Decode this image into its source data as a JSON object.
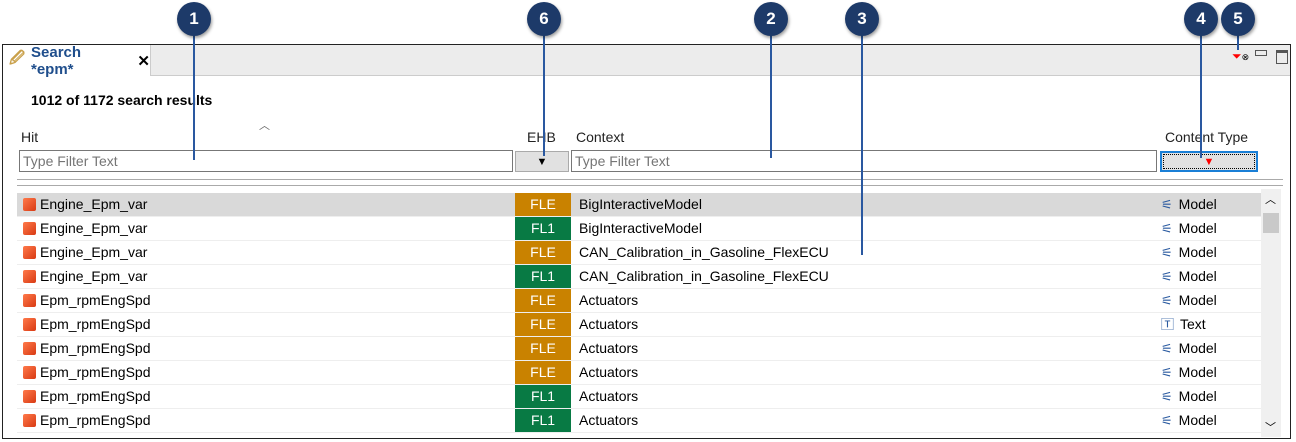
{
  "tab": {
    "title": "Search *epm*",
    "close": "✕"
  },
  "summary": "1012 of 1172 search results",
  "columns": {
    "hit": "Hit",
    "ehb": "EHB",
    "context": "Context",
    "content_type": "Content Type"
  },
  "filters": {
    "hit_placeholder": "Type Filter Text",
    "context_placeholder": "Type Filter Text"
  },
  "colors": {
    "FLE": "#c98200",
    "FL1": "#087a44",
    "callout": "#1d3a69"
  },
  "callouts": [
    "1",
    "6",
    "2",
    "3",
    "4",
    "5"
  ],
  "rows": [
    {
      "hit": "Engine_Epm_var",
      "ehb": "FLE",
      "context": "BigInteractiveModel",
      "type": "Model",
      "icon": "model-icon"
    },
    {
      "hit": "Engine_Epm_var",
      "ehb": "FL1",
      "context": "BigInteractiveModel",
      "type": "Model",
      "icon": "model-icon"
    },
    {
      "hit": "Engine_Epm_var",
      "ehb": "FLE",
      "context": "CAN_Calibration_in_Gasoline_FlexECU",
      "type": "Model",
      "icon": "model-icon"
    },
    {
      "hit": "Engine_Epm_var",
      "ehb": "FL1",
      "context": "CAN_Calibration_in_Gasoline_FlexECU",
      "type": "Model",
      "icon": "model-icon"
    },
    {
      "hit": "Epm_rpmEngSpd",
      "ehb": "FLE",
      "context": "Actuators",
      "type": "Model",
      "icon": "model-icon"
    },
    {
      "hit": "Epm_rpmEngSpd",
      "ehb": "FLE",
      "context": "Actuators",
      "type": "Text",
      "icon": "text-icon"
    },
    {
      "hit": "Epm_rpmEngSpd",
      "ehb": "FLE",
      "context": "Actuators",
      "type": "Model",
      "icon": "model-icon"
    },
    {
      "hit": "Epm_rpmEngSpd",
      "ehb": "FLE",
      "context": "Actuators",
      "type": "Model",
      "icon": "model-icon"
    },
    {
      "hit": "Epm_rpmEngSpd",
      "ehb": "FL1",
      "context": "Actuators",
      "type": "Model",
      "icon": "model-icon"
    },
    {
      "hit": "Epm_rpmEngSpd",
      "ehb": "FL1",
      "context": "Actuators",
      "type": "Model",
      "icon": "model-icon"
    }
  ]
}
